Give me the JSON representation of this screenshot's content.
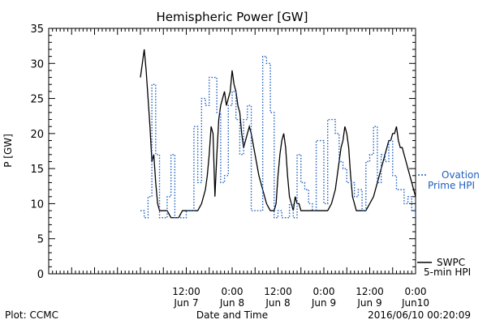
{
  "chart_data": {
    "type": "line",
    "title": "Hemispheric Power [GW]",
    "xlabel": "Date and Time",
    "ylabel": "P [GW]",
    "ylim": [
      0,
      35
    ],
    "xlim_hours": [
      -24,
      72
    ],
    "yticks": [
      0,
      5,
      10,
      15,
      20,
      25,
      30,
      35
    ],
    "xticks": [
      {
        "h": 12,
        "time": "12:00",
        "date": "Jun 7"
      },
      {
        "h": 24,
        "time": "0:00",
        "date": "Jun 8"
      },
      {
        "h": 36,
        "time": "12:00",
        "date": "Jun 8"
      },
      {
        "h": 48,
        "time": "0:00",
        "date": "Jun 9"
      },
      {
        "h": 60,
        "time": "12:00",
        "date": "Jun 9"
      },
      {
        "h": 72,
        "time": "0:00",
        "date": "Jun10"
      }
    ],
    "grid": false,
    "series": [
      {
        "name": "SWPC 5-min HPI",
        "color": "#000000",
        "style": "solid",
        "x": [
          0,
          0.5,
          1,
          1.5,
          2,
          2.5,
          3,
          3.5,
          4,
          4.5,
          5,
          6,
          7,
          8,
          9,
          10,
          11,
          12,
          13,
          14,
          15,
          16,
          17,
          17.5,
          18,
          18.5,
          19,
          19.5,
          20,
          20.5,
          21,
          21.5,
          22,
          22.5,
          23,
          23.5,
          24,
          24.5,
          25,
          25.5,
          26,
          26.5,
          27,
          27.5,
          28,
          28.5,
          29,
          30,
          31,
          32,
          33,
          34,
          35,
          35.5,
          36,
          36.5,
          37,
          37.5,
          38,
          38.5,
          39,
          39.5,
          40,
          40.5,
          41,
          41.5,
          42,
          43,
          44,
          45,
          46,
          47,
          48,
          49,
          50,
          51,
          52,
          52.5,
          53,
          53.5,
          54,
          54.5,
          55,
          55.5,
          56,
          56.5,
          57,
          57.5,
          58,
          59,
          60,
          61,
          62,
          63,
          64,
          64.5,
          65,
          65.5,
          66,
          66.5,
          67,
          67.5,
          68,
          68.5,
          69,
          69.5,
          70,
          70.5,
          71,
          71.5,
          72
        ],
        "y": [
          28,
          30,
          32,
          29,
          25,
          21,
          16,
          17,
          13,
          10,
          9,
          9,
          9,
          8,
          8,
          8,
          9,
          9,
          9,
          9,
          9,
          10,
          12,
          14,
          17,
          21,
          20,
          11,
          17,
          22,
          24,
          25,
          26,
          24,
          25,
          26,
          29,
          27,
          26,
          24,
          23,
          20,
          18,
          19,
          20,
          21,
          20,
          17,
          14,
          12,
          10,
          9,
          9,
          10,
          14,
          17,
          19,
          20,
          18,
          14,
          11,
          10,
          9,
          11,
          10,
          10,
          9,
          9,
          9,
          9,
          9,
          9,
          9,
          9,
          10,
          12,
          16,
          18,
          19,
          21,
          20,
          18,
          14,
          11,
          10,
          9,
          9,
          9,
          9,
          9,
          10,
          11,
          13,
          15,
          17,
          18,
          19,
          19,
          20,
          20,
          21,
          19,
          18,
          18,
          17,
          16,
          15,
          14,
          13,
          12,
          11
        ]
      },
      {
        "name": "Ovation Prime HPI",
        "color": "#1f5fbf",
        "style": "dotted",
        "x": [
          0,
          1,
          2,
          3,
          4,
          5,
          6,
          7,
          8,
          9,
          10,
          11,
          12,
          13,
          14,
          15,
          16,
          17,
          18,
          19,
          20,
          21,
          22,
          23,
          24,
          25,
          26,
          27,
          28,
          29,
          30,
          31,
          32,
          33,
          34,
          35,
          36,
          37,
          38,
          39,
          40,
          41,
          42,
          43,
          44,
          45,
          46,
          47,
          48,
          49,
          50,
          51,
          52,
          53,
          54,
          55,
          56,
          57,
          58,
          59,
          60,
          61,
          62,
          63,
          64,
          65,
          66,
          67,
          68,
          69,
          70,
          71,
          72
        ],
        "y": [
          9,
          8,
          11,
          27,
          17,
          8,
          8,
          11,
          17,
          8,
          8,
          8,
          9,
          9,
          21,
          13,
          25,
          24,
          28,
          28,
          23,
          13,
          14,
          24,
          26,
          22,
          17,
          22,
          24,
          9,
          9,
          9,
          31,
          30,
          23,
          8,
          9,
          8,
          8,
          10,
          8,
          17,
          13,
          12,
          10,
          9,
          19,
          19,
          10,
          22,
          22,
          20,
          16,
          15,
          13,
          13,
          11,
          12,
          9,
          16,
          17,
          21,
          13,
          17,
          16,
          19,
          14,
          12,
          12,
          10,
          11,
          9,
          8
        ]
      }
    ]
  },
  "footer": {
    "plot_credit": "Plot: CCMC",
    "timestamp": "2016/06/10 00:20:09"
  },
  "legend": {
    "ovation_line1": "Ovation",
    "ovation_line2": "Prime HPI",
    "swpc_line1": "SWPC",
    "swpc_line2": "5-min HPI"
  }
}
